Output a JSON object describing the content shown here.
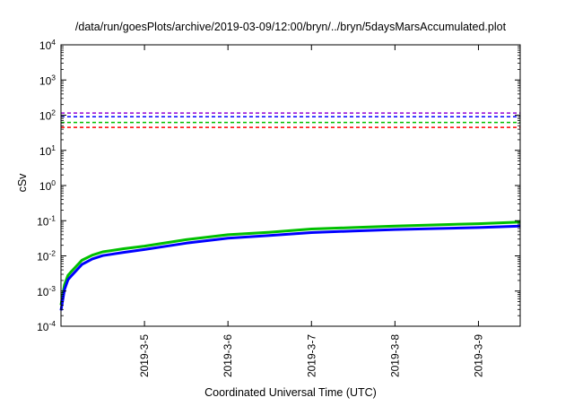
{
  "chart_data": {
    "type": "line",
    "title": "/data/run/goesPlots/archive/2019-03-09/12:00/bryn/../bryn/5daysMarsAccumulated.plot",
    "xlabel": "Coordinated Universal Time (UTC)",
    "ylabel": "cSv",
    "y_scale": "log",
    "ylim": [
      0.0001,
      10000
    ],
    "y_ticks": [
      {
        "value": 0.0001,
        "base": "10",
        "exp": "-4"
      },
      {
        "value": 0.001,
        "base": "10",
        "exp": "-3"
      },
      {
        "value": 0.01,
        "base": "10",
        "exp": "-2"
      },
      {
        "value": 0.1,
        "base": "10",
        "exp": "-1"
      },
      {
        "value": 1,
        "base": "10",
        "exp": "0"
      },
      {
        "value": 10,
        "base": "10",
        "exp": "1"
      },
      {
        "value": 100,
        "base": "10",
        "exp": "2"
      },
      {
        "value": 1000,
        "base": "10",
        "exp": "3"
      },
      {
        "value": 10000,
        "base": "10",
        "exp": "4"
      }
    ],
    "xlim": [
      "2019-03-04T00:00",
      "2019-03-09T12:00"
    ],
    "x_ticks": [
      "2019-3-5",
      "2019-3-6",
      "2019-3-7",
      "2019-3-8",
      "2019-3-9"
    ],
    "x_tick_dates": [
      "2019-03-05T00:00",
      "2019-03-06T00:00",
      "2019-03-07T00:00",
      "2019-03-08T00:00",
      "2019-03-09T00:00"
    ],
    "grid": false,
    "legend": "none",
    "thresholds": [
      {
        "value": 115,
        "color": "#9400d3"
      },
      {
        "value": 90,
        "color": "#0000ff"
      },
      {
        "value": 62,
        "color": "#00c000"
      },
      {
        "value": 45,
        "color": "#ff0000"
      }
    ],
    "series": [
      {
        "color": "#00c000",
        "x": [
          "2019-03-04T00:00",
          "2019-03-04T01:00",
          "2019-03-04T02:00",
          "2019-03-04T03:00",
          "2019-03-04T06:00",
          "2019-03-04T09:00",
          "2019-03-04T12:00",
          "2019-03-04T18:00",
          "2019-03-05T00:00",
          "2019-03-05T12:00",
          "2019-03-06T00:00",
          "2019-03-06T12:00",
          "2019-03-07T00:00",
          "2019-03-07T12:00",
          "2019-03-08T00:00",
          "2019-03-08T12:00",
          "2019-03-09T00:00",
          "2019-03-09T12:00"
        ],
        "y": [
          0.0004,
          0.0015,
          0.0028,
          0.0036,
          0.0075,
          0.0105,
          0.013,
          0.016,
          0.019,
          0.029,
          0.04,
          0.047,
          0.058,
          0.064,
          0.07,
          0.076,
          0.082,
          0.092
        ]
      },
      {
        "color": "#0000ff",
        "x": [
          "2019-03-04T00:00",
          "2019-03-04T01:00",
          "2019-03-04T02:00",
          "2019-03-04T03:00",
          "2019-03-04T06:00",
          "2019-03-04T09:00",
          "2019-03-04T12:00",
          "2019-03-04T18:00",
          "2019-03-05T00:00",
          "2019-03-05T12:00",
          "2019-03-06T00:00",
          "2019-03-06T12:00",
          "2019-03-07T00:00",
          "2019-03-07T12:00",
          "2019-03-08T00:00",
          "2019-03-08T12:00",
          "2019-03-09T00:00",
          "2019-03-09T12:00"
        ],
        "y": [
          0.00028,
          0.0011,
          0.0021,
          0.0027,
          0.0057,
          0.0082,
          0.0102,
          0.0126,
          0.0152,
          0.023,
          0.032,
          0.038,
          0.046,
          0.051,
          0.056,
          0.06,
          0.064,
          0.07
        ]
      }
    ]
  }
}
